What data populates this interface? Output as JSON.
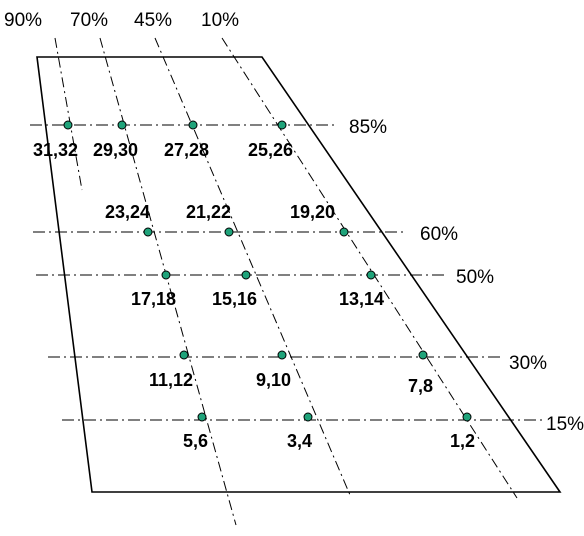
{
  "chord_labels": {
    "c90": "90%",
    "c70": "70%",
    "c45": "45%",
    "c10": "10%"
  },
  "span_labels": {
    "s85": "85%",
    "s60": "60%",
    "s50": "50%",
    "s30": "30%",
    "s15": "15%"
  },
  "taps": {
    "p31_32": "31,32",
    "p29_30": "29,30",
    "p27_28": "27,28",
    "p25_26": "25,26",
    "p23_24": "23,24",
    "p21_22": "21,22",
    "p19_20": "19,20",
    "p17_18": "17,18",
    "p15_16": "15,16",
    "p13_14": "13,14",
    "p11_12": "11,12",
    "p9_10": "9,10",
    "p7_8": "7,8",
    "p5_6": "5,6",
    "p3_4": "3,4",
    "p1_2": "1,2"
  },
  "colors": {
    "tap_fill": "#1fa37a",
    "line": "#000000"
  }
}
